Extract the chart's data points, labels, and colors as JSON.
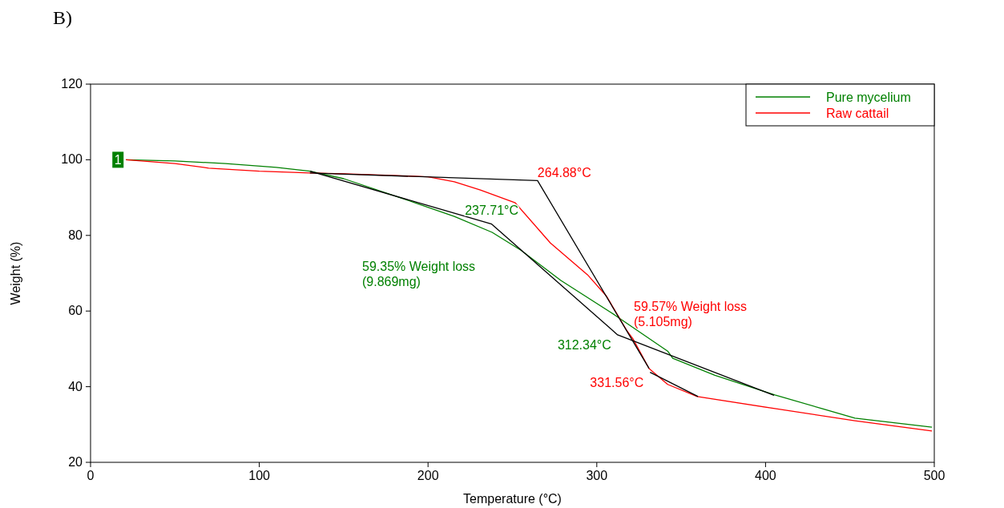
{
  "chart_data": {
    "type": "line",
    "xlabel": "Temperature (°C)",
    "ylabel": "Weight (%)",
    "xlim": [
      0,
      500
    ],
    "ylim": [
      20,
      120
    ],
    "xticks": [
      0,
      100,
      200,
      300,
      400,
      500
    ],
    "yticks": [
      20,
      40,
      60,
      80,
      100,
      120
    ],
    "grid": false,
    "legend": "top right",
    "line_style": "solid",
    "marker": "none",
    "series": [
      {
        "name": "Pure mycelium",
        "color": "#008000",
        "x": [
          21,
          50,
          80,
          110,
          130,
          150,
          184,
          215.6,
          238,
          255,
          278.7,
          310.5,
          342,
          345,
          370,
          405.5,
          453,
          498.6
        ],
        "values": [
          100,
          99.7,
          99,
          98,
          97,
          95,
          89.9,
          85,
          80.8,
          76.1,
          68.1,
          59,
          49.4,
          47.5,
          43,
          37.8,
          31.7,
          29.3
        ]
      },
      {
        "name": "Raw cattail",
        "color": "#ff0000",
        "x": [
          21,
          50,
          70,
          100,
          130,
          150,
          200,
          215.6,
          231,
          251.7,
          272.5,
          294.5,
          305.8,
          318,
          321.5,
          331,
          342,
          359.5,
          405.5,
          453,
          498.6
        ],
        "values": [
          100,
          99,
          97.8,
          97,
          96.5,
          96.3,
          95.5,
          94.2,
          92,
          88.6,
          78,
          69.6,
          63.9,
          54.7,
          52.6,
          44.8,
          40.6,
          37.4,
          34.2,
          31,
          28.3
        ]
      },
      {
        "color": "#000000",
        "x": [
          130,
          264.88,
          331
        ],
        "values": [
          96.5,
          94.5,
          44.8
        ]
      },
      {
        "color": "#000000",
        "x": [
          331.56,
          360
        ],
        "values": [
          43.8,
          37.4
        ]
      },
      {
        "color": "#000000",
        "x": [
          130,
          237.71,
          312.34,
          405
        ],
        "values": [
          97,
          83,
          53.7,
          37.7
        ]
      }
    ],
    "annotations": [
      "B)",
      "59.35% Weight loss\n(9.869mg)",
      "59.57% Weight loss\n(5.105mg)",
      {
        "text": "1",
        "x": 21,
        "y": 100
      },
      {
        "text": "264.88°C",
        "x": 264.88,
        "y": 94.5
      },
      {
        "text": "237.71°C",
        "x": 237.71,
        "y": 83
      },
      {
        "text": "312.34°C",
        "x": 312.34,
        "y": 53.7
      },
      {
        "text": "331.56°C",
        "x": 331.56,
        "y": 43.8
      }
    ]
  }
}
